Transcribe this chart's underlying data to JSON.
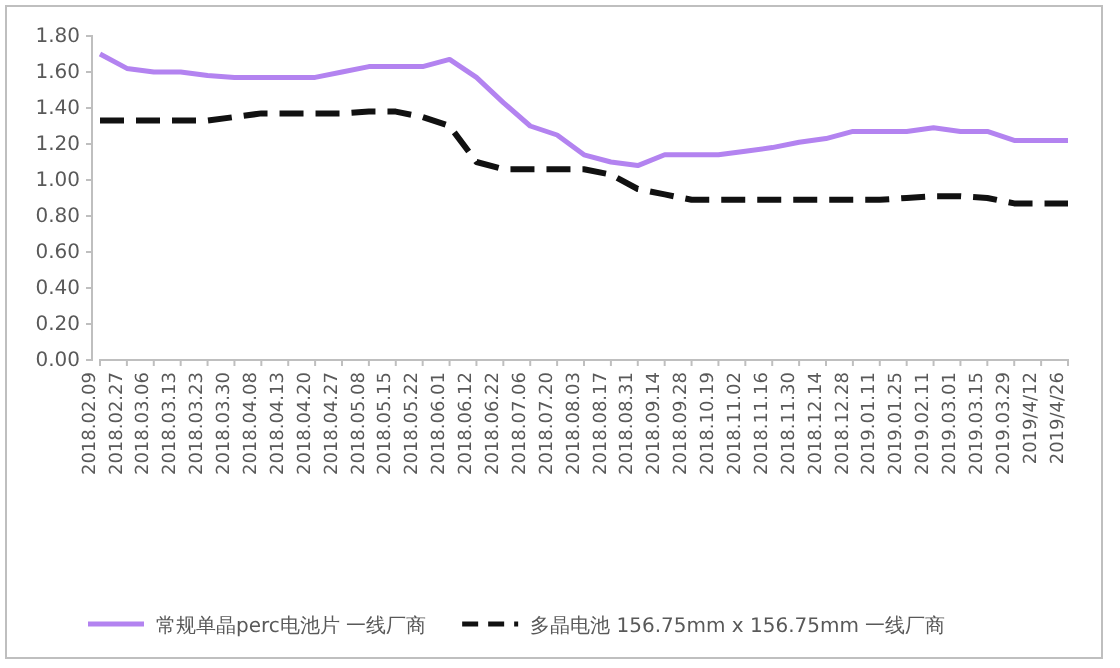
{
  "chart_data": {
    "type": "line",
    "categories": [
      "2018.02.09",
      "2018.02.27",
      "2018.03.06",
      "2018.03.13",
      "2018.03.23",
      "2018.03.30",
      "2018.04.08",
      "2018.04.13",
      "2018.04.20",
      "2018.04.27",
      "2018.05.08",
      "2018.05.15",
      "2018.05.22",
      "2018.06.01",
      "2018.06.12",
      "2018.06.22",
      "2018.07.06",
      "2018.07.20",
      "2018.08.03",
      "2018.08.17",
      "2018.08.31",
      "2018.09.14",
      "2018.09.28",
      "2018.10.19",
      "2018.11.02",
      "2018.11.16",
      "2018.11.30",
      "2018.12.14",
      "2018.12.28",
      "2019.01.11",
      "2019.01.25",
      "2019.02.11",
      "2019.03.01",
      "2019.03.15",
      "2019.03.29",
      "2019/4/12",
      "2019/4/26"
    ],
    "series": [
      {
        "name": "常规单晶perc电池片 一线厂商",
        "color": "#b383f0",
        "line_style": "solid",
        "values": [
          1.7,
          1.62,
          1.6,
          1.6,
          1.58,
          1.57,
          1.57,
          1.57,
          1.57,
          1.6,
          1.63,
          1.63,
          1.63,
          1.67,
          1.57,
          1.43,
          1.3,
          1.25,
          1.14,
          1.1,
          1.08,
          1.14,
          1.14,
          1.14,
          1.16,
          1.18,
          1.21,
          1.23,
          1.27,
          1.27,
          1.27,
          1.29,
          1.27,
          1.27,
          1.22,
          1.22,
          1.22
        ]
      },
      {
        "name": "多晶电池 156.75mm x 156.75mm 一线厂商",
        "color": "#111111",
        "line_style": "dashed",
        "values": [
          1.33,
          1.33,
          1.33,
          1.33,
          1.33,
          1.35,
          1.37,
          1.37,
          1.37,
          1.37,
          1.38,
          1.38,
          1.35,
          1.3,
          1.1,
          1.06,
          1.06,
          1.06,
          1.06,
          1.03,
          0.95,
          0.92,
          0.89,
          0.89,
          0.89,
          0.89,
          0.89,
          0.89,
          0.89,
          0.89,
          0.9,
          0.91,
          0.91,
          0.9,
          0.87,
          0.87,
          0.87
        ]
      }
    ],
    "ylim": [
      0,
      1.8
    ],
    "yticks": [
      {
        "value": 0,
        "label": "0.00"
      },
      {
        "value": 0.2,
        "label": "0.20"
      },
      {
        "value": 0.4,
        "label": "0.40"
      },
      {
        "value": 0.6,
        "label": "0.60"
      },
      {
        "value": 0.8,
        "label": "0.80"
      },
      {
        "value": 1,
        "label": "1.00"
      },
      {
        "value": 1.2,
        "label": "1.20"
      },
      {
        "value": 1.4,
        "label": "1.40"
      },
      {
        "value": 1.6,
        "label": "1.60"
      },
      {
        "value": 1.8,
        "label": "1.80"
      }
    ],
    "grid": false,
    "legend": "bottom",
    "marker": "none"
  }
}
